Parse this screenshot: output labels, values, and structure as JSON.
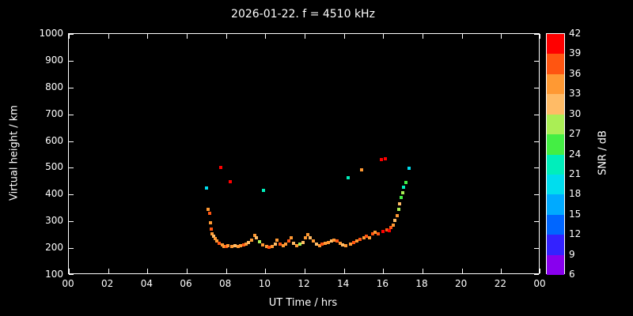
{
  "title": "2026-01-22. f = 4510 kHz",
  "axes": {
    "x_label": "UT Time / hrs",
    "y_label": "Virtual height / km",
    "x_ticks": [
      "00",
      "02",
      "04",
      "06",
      "08",
      "10",
      "12",
      "14",
      "16",
      "18",
      "20",
      "22",
      "00"
    ],
    "y_ticks": [
      "1000",
      "900",
      "800",
      "700",
      "600",
      "500",
      "400",
      "300",
      "200",
      "100"
    ]
  },
  "colorbar": {
    "label": "SNR / dB",
    "ticks": [
      "42",
      "39",
      "36",
      "33",
      "30",
      "27",
      "24",
      "21",
      "18",
      "15",
      "12",
      "9",
      "6"
    ],
    "min": 6,
    "max": 42,
    "step": 3,
    "colors_bottom_to_top": [
      "#8800ee",
      "#3322ff",
      "#0066ff",
      "#00aaff",
      "#00ddee",
      "#00eebb",
      "#44ee44",
      "#aaee55",
      "#ffbb66",
      "#ff9933",
      "#ff5511",
      "#ff0000"
    ]
  },
  "colors": {
    "background": "#000000",
    "foreground": "#ffffff"
  },
  "chart_data": {
    "type": "scatter",
    "title": "2026-01-22. f = 4510 kHz",
    "xlabel": "UT Time / hrs",
    "ylabel": "Virtual height / km",
    "xlim": [
      0,
      24
    ],
    "ylim": [
      100,
      1000
    ],
    "grid": false,
    "colorbar_label": "SNR / dB",
    "colorbar_range": [
      6,
      42
    ],
    "points_format": [
      "time_hrs",
      "virtual_height_km",
      "snr_db"
    ],
    "points": [
      [
        7.0,
        425,
        18
      ],
      [
        7.1,
        345,
        33
      ],
      [
        7.15,
        330,
        36
      ],
      [
        7.2,
        295,
        34
      ],
      [
        7.25,
        270,
        36
      ],
      [
        7.3,
        252,
        33
      ],
      [
        7.35,
        244,
        31
      ],
      [
        7.45,
        236,
        34
      ],
      [
        7.55,
        226,
        33
      ],
      [
        7.65,
        218,
        36
      ],
      [
        7.75,
        500,
        40
      ],
      [
        7.8,
        212,
        34
      ],
      [
        7.9,
        207,
        33
      ],
      [
        8.0,
        205,
        36
      ],
      [
        8.1,
        210,
        33
      ],
      [
        8.2,
        447,
        40
      ],
      [
        8.3,
        206,
        34
      ],
      [
        8.45,
        210,
        31
      ],
      [
        8.6,
        205,
        33
      ],
      [
        8.75,
        208,
        34
      ],
      [
        8.9,
        212,
        36
      ],
      [
        9.0,
        215,
        33
      ],
      [
        9.15,
        220,
        31
      ],
      [
        9.3,
        230,
        33
      ],
      [
        9.45,
        247,
        34
      ],
      [
        9.55,
        240,
        31
      ],
      [
        9.7,
        224,
        28
      ],
      [
        9.85,
        212,
        33
      ],
      [
        9.9,
        415,
        21
      ],
      [
        10.05,
        206,
        34
      ],
      [
        10.2,
        202,
        36
      ],
      [
        10.35,
        206,
        33
      ],
      [
        10.5,
        214,
        30
      ],
      [
        10.6,
        230,
        33
      ],
      [
        10.75,
        214,
        36
      ],
      [
        10.9,
        208,
        33
      ],
      [
        11.05,
        214,
        34
      ],
      [
        11.2,
        226,
        36
      ],
      [
        11.3,
        238,
        33
      ],
      [
        11.45,
        218,
        30
      ],
      [
        11.6,
        210,
        33
      ],
      [
        11.75,
        214,
        28
      ],
      [
        11.9,
        222,
        31
      ],
      [
        12.05,
        238,
        33
      ],
      [
        12.15,
        250,
        34
      ],
      [
        12.3,
        240,
        31
      ],
      [
        12.45,
        226,
        33
      ],
      [
        12.6,
        216,
        30
      ],
      [
        12.75,
        210,
        33
      ],
      [
        12.9,
        214,
        36
      ],
      [
        13.05,
        218,
        34
      ],
      [
        13.2,
        222,
        33
      ],
      [
        13.35,
        226,
        31
      ],
      [
        13.5,
        230,
        33
      ],
      [
        13.65,
        226,
        36
      ],
      [
        13.8,
        218,
        33
      ],
      [
        13.95,
        212,
        31
      ],
      [
        14.1,
        210,
        33
      ],
      [
        14.2,
        462,
        21
      ],
      [
        14.35,
        214,
        34
      ],
      [
        14.5,
        222,
        36
      ],
      [
        14.65,
        228,
        33
      ],
      [
        14.8,
        234,
        36
      ],
      [
        14.9,
        492,
        33
      ],
      [
        15.0,
        240,
        34
      ],
      [
        15.15,
        246,
        36
      ],
      [
        15.3,
        240,
        33
      ],
      [
        15.45,
        252,
        36
      ],
      [
        15.6,
        258,
        34
      ],
      [
        15.75,
        254,
        36
      ],
      [
        15.9,
        532,
        40
      ],
      [
        16.0,
        262,
        39
      ],
      [
        16.1,
        535,
        40
      ],
      [
        16.2,
        268,
        36
      ],
      [
        16.3,
        264,
        40
      ],
      [
        16.4,
        276,
        36
      ],
      [
        16.5,
        286,
        34
      ],
      [
        16.6,
        304,
        31
      ],
      [
        16.7,
        322,
        33
      ],
      [
        16.8,
        344,
        28
      ],
      [
        16.85,
        366,
        31
      ],
      [
        16.9,
        388,
        25
      ],
      [
        17.0,
        408,
        27
      ],
      [
        17.05,
        428,
        22
      ],
      [
        17.15,
        446,
        24
      ],
      [
        17.3,
        498,
        18
      ]
    ]
  }
}
